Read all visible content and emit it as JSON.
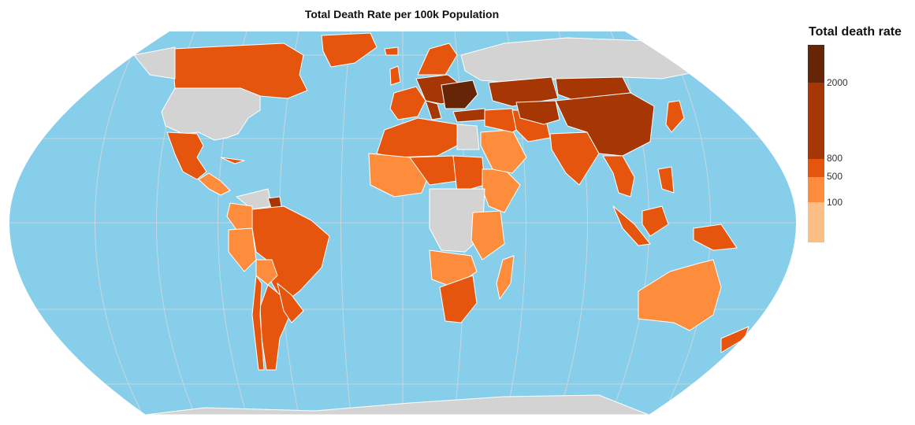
{
  "title": "Total Death Rate per 100k Population",
  "legend": {
    "title": "Total death rate",
    "ticks": [
      "2000",
      "800",
      "500",
      "100"
    ],
    "colors": [
      "#fdbe85",
      "#fd8d3c",
      "#e6550d",
      "#a63603",
      "#662506"
    ]
  },
  "colors": {
    "ocean": "#87ceeb",
    "no_data": "#d3d3d3",
    "border": "#ffffff",
    "graticule": "#c9d6dc"
  }
}
